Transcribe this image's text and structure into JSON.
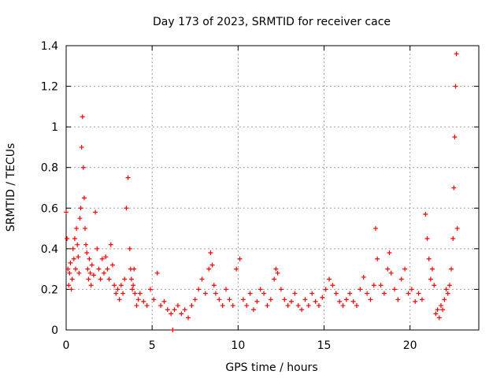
{
  "chart_data": {
    "type": "scatter",
    "title": "Day 173 of 2023, SRMTID for receiver cace",
    "xlabel": "GPS time / hours",
    "ylabel": "SRMTID / TECUs",
    "xlim": [
      0,
      24
    ],
    "ylim": [
      0,
      1.4
    ],
    "xticks": [
      0,
      5,
      10,
      15,
      20
    ],
    "xtick_labels": [
      "0",
      "5",
      "10",
      "15",
      "20"
    ],
    "yticks": [
      0,
      0.2,
      0.4,
      0.6,
      0.8,
      1.0,
      1.2,
      1.4
    ],
    "ytick_labels": [
      "0",
      "0.2",
      "0.4",
      "0.6",
      "0.8",
      "1",
      "1.2",
      "1.4"
    ],
    "grid": true,
    "marker": "plus",
    "color": "#ff0000",
    "series": [
      {
        "name": "SRMTID",
        "x": [
          0.0,
          0.05,
          0.1,
          0.15,
          0.2,
          0.25,
          0.3,
          0.35,
          0.4,
          0.45,
          0.5,
          0.55,
          0.6,
          0.65,
          0.7,
          0.75,
          0.8,
          0.85,
          0.9,
          0.95,
          1.0,
          1.05,
          1.1,
          1.15,
          1.2,
          1.25,
          1.3,
          1.35,
          1.4,
          1.45,
          1.5,
          1.6,
          1.7,
          1.8,
          1.9,
          2.0,
          2.1,
          2.2,
          2.3,
          2.4,
          2.5,
          2.6,
          2.7,
          2.8,
          2.9,
          3.0,
          3.1,
          3.2,
          3.3,
          3.4,
          3.5,
          3.6,
          3.7,
          3.75,
          3.8,
          3.85,
          3.9,
          3.95,
          4.0,
          4.1,
          4.2,
          4.3,
          4.5,
          4.7,
          4.9,
          5.1,
          5.3,
          5.5,
          5.7,
          5.9,
          6.1,
          6.2,
          6.3,
          6.5,
          6.7,
          6.9,
          7.1,
          7.3,
          7.5,
          7.7,
          7.9,
          8.1,
          8.3,
          8.4,
          8.5,
          8.6,
          8.7,
          8.9,
          9.1,
          9.3,
          9.5,
          9.7,
          9.9,
          10.1,
          10.3,
          10.5,
          10.7,
          10.9,
          11.1,
          11.3,
          11.5,
          11.7,
          11.9,
          12.1,
          12.2,
          12.3,
          12.5,
          12.7,
          12.9,
          13.1,
          13.3,
          13.5,
          13.7,
          13.9,
          14.1,
          14.3,
          14.5,
          14.7,
          14.9,
          15.1,
          15.3,
          15.5,
          15.7,
          15.9,
          16.1,
          16.3,
          16.5,
          16.7,
          16.9,
          17.1,
          17.3,
          17.5,
          17.7,
          17.9,
          18.0,
          18.1,
          18.3,
          18.5,
          18.7,
          18.8,
          18.9,
          19.1,
          19.3,
          19.5,
          19.7,
          19.9,
          20.1,
          20.3,
          20.5,
          20.7,
          20.9,
          21.0,
          21.1,
          21.2,
          21.3,
          21.4,
          21.5,
          21.6,
          21.7,
          21.8,
          21.9,
          22.0,
          22.1,
          22.2,
          22.3,
          22.4,
          22.5,
          22.55,
          22.6,
          22.65,
          22.7,
          22.75
        ],
        "y": [
          0.58,
          0.45,
          0.3,
          0.22,
          0.28,
          0.33,
          0.2,
          0.25,
          0.4,
          0.35,
          0.45,
          0.3,
          0.5,
          0.42,
          0.36,
          0.28,
          0.55,
          0.6,
          0.9,
          1.05,
          0.8,
          0.65,
          0.5,
          0.42,
          0.38,
          0.3,
          0.25,
          0.35,
          0.28,
          0.22,
          0.32,
          0.27,
          0.58,
          0.4,
          0.3,
          0.25,
          0.35,
          0.28,
          0.36,
          0.3,
          0.25,
          0.42,
          0.32,
          0.22,
          0.18,
          0.2,
          0.15,
          0.22,
          0.18,
          0.25,
          0.6,
          0.75,
          0.4,
          0.3,
          0.25,
          0.2,
          0.22,
          0.3,
          0.18,
          0.12,
          0.15,
          0.18,
          0.14,
          0.12,
          0.2,
          0.15,
          0.28,
          0.12,
          0.14,
          0.1,
          0.08,
          0.0,
          0.1,
          0.12,
          0.08,
          0.1,
          0.06,
          0.12,
          0.15,
          0.2,
          0.25,
          0.18,
          0.3,
          0.38,
          0.32,
          0.22,
          0.18,
          0.15,
          0.12,
          0.2,
          0.15,
          0.12,
          0.3,
          0.35,
          0.15,
          0.12,
          0.18,
          0.1,
          0.14,
          0.2,
          0.18,
          0.12,
          0.15,
          0.25,
          0.3,
          0.28,
          0.2,
          0.15,
          0.12,
          0.14,
          0.18,
          0.12,
          0.1,
          0.15,
          0.12,
          0.18,
          0.14,
          0.12,
          0.16,
          0.2,
          0.25,
          0.22,
          0.18,
          0.14,
          0.12,
          0.15,
          0.18,
          0.14,
          0.12,
          0.2,
          0.26,
          0.18,
          0.15,
          0.22,
          0.5,
          0.35,
          0.22,
          0.18,
          0.3,
          0.38,
          0.28,
          0.2,
          0.15,
          0.25,
          0.3,
          0.18,
          0.2,
          0.14,
          0.18,
          0.15,
          0.57,
          0.45,
          0.35,
          0.25,
          0.3,
          0.22,
          0.08,
          0.1,
          0.06,
          0.12,
          0.1,
          0.15,
          0.2,
          0.18,
          0.22,
          0.3,
          0.45,
          0.7,
          0.95,
          1.2,
          1.36,
          0.5
        ]
      }
    ]
  }
}
